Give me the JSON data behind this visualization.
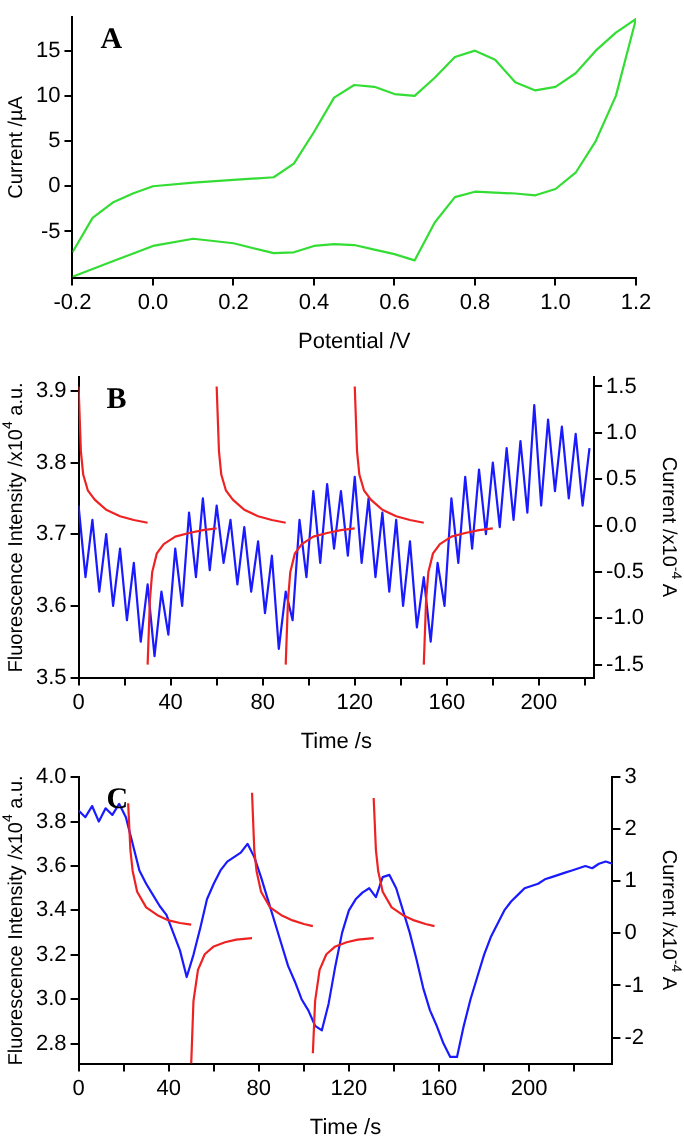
{
  "chart_data": [
    {
      "type": "line",
      "xlabel": "Potential /V",
      "ylabel": "Current /µA",
      "annotations": [
        "A"
      ],
      "marker": "none",
      "xlim": [
        -0.2,
        1.2
      ],
      "ylim": [
        -10.1,
        18.7
      ],
      "xticks": [
        {
          "value": -0.2,
          "label": "-0.2"
        },
        {
          "value": 0,
          "label": "0.0"
        },
        0.2,
        0.4,
        0.6,
        0.8,
        {
          "value": 1,
          "label": "1.0"
        },
        1.2
      ],
      "yticks": [
        -5,
        0,
        5,
        10,
        15
      ],
      "series": [
        {
          "color": "#33dd33",
          "x": [
            -0.2,
            -0.15,
            -0.1,
            -0.05,
            0,
            0.1,
            0.2,
            0.3,
            0.35,
            0.4,
            0.45,
            0.5,
            0.55,
            0.6,
            0.65,
            0.7,
            0.75,
            0.8,
            0.85,
            0.9,
            0.95,
            1.0,
            1.05,
            1.1,
            1.15,
            1.2,
            1.15,
            1.1,
            1.05,
            1.0,
            0.95,
            0.9,
            0.8,
            0.75,
            0.7,
            0.65,
            0.6,
            0.55,
            0.5,
            0.45,
            0.4,
            0.35,
            0.3,
            0.2,
            0.1,
            0,
            -0.1,
            -0.2
          ],
          "values": [
            -7.3,
            -3.5,
            -1.8,
            -0.8,
            0,
            0.4,
            0.7,
            1.0,
            2.5,
            6,
            9.8,
            11.2,
            11,
            10.2,
            10,
            12,
            14.3,
            15,
            14,
            11.5,
            10.6,
            11,
            12.5,
            15,
            17,
            18.5,
            10,
            5,
            1.5,
            -0.3,
            -1,
            -0.8,
            -0.6,
            -1.2,
            -4,
            -8.2,
            -7.5,
            -7,
            -6.5,
            -6.4,
            -6.6,
            -7.3,
            -7.4,
            -6.3,
            -5.8,
            -6.6,
            -8.3,
            -10
          ]
        }
      ]
    },
    {
      "type": "line",
      "xlabel": "Time /s",
      "ylabel": "Fluorescence Intensity /x10$^{4}$ a.u.",
      "y2label": "Current /x10$^{-4}$ A",
      "annotations": [
        "B"
      ],
      "marker": "none",
      "xlim": [
        0,
        224
      ],
      "ylim": [
        3.5,
        3.919
      ],
      "y2lim": [
        -1.64,
        1.6
      ],
      "xticks": [
        0,
        {
          "value": 20,
          "label": null
        },
        40,
        {
          "value": 60,
          "label": null
        },
        80,
        {
          "value": 100,
          "label": null
        },
        120,
        {
          "value": 140,
          "label": null
        },
        160,
        {
          "value": 180,
          "label": null
        },
        200,
        {
          "value": 220,
          "label": null
        }
      ],
      "yticks": [
        3.5,
        3.6,
        3.7,
        3.8,
        3.9
      ],
      "y2ticks": [
        -1.5,
        {
          "value": -1,
          "label": "-1.0"
        },
        -0.5,
        {
          "value": 0,
          "label": "0.0"
        },
        0.5,
        {
          "value": 1,
          "label": "1.0"
        },
        1.5
      ],
      "series": [
        {
          "color": "#1a1aff",
          "x": [
            0,
            3,
            6,
            9,
            12,
            15,
            18,
            21,
            24,
            27,
            30,
            33,
            36,
            39,
            42,
            45,
            48,
            51,
            54,
            57,
            60,
            63,
            66,
            69,
            72,
            75,
            78,
            81,
            84,
            87,
            90,
            93,
            96,
            99,
            102,
            105,
            108,
            111,
            114,
            117,
            120,
            123,
            126,
            129,
            132,
            135,
            138,
            141,
            144,
            147,
            150,
            153,
            156,
            159,
            162,
            165,
            168,
            171,
            174,
            177,
            180,
            183,
            186,
            189,
            192,
            195,
            198,
            201,
            204,
            207,
            210,
            213,
            216,
            219,
            222
          ],
          "values": [
            3.74,
            3.64,
            3.72,
            3.62,
            3.7,
            3.6,
            3.68,
            3.58,
            3.66,
            3.55,
            3.63,
            3.53,
            3.62,
            3.56,
            3.68,
            3.6,
            3.73,
            3.64,
            3.75,
            3.65,
            3.74,
            3.66,
            3.72,
            3.63,
            3.71,
            3.62,
            3.69,
            3.59,
            3.67,
            3.54,
            3.62,
            3.58,
            3.72,
            3.64,
            3.76,
            3.66,
            3.77,
            3.68,
            3.76,
            3.67,
            3.78,
            3.66,
            3.75,
            3.64,
            3.73,
            3.62,
            3.72,
            3.6,
            3.69,
            3.57,
            3.64,
            3.55,
            3.66,
            3.6,
            3.75,
            3.66,
            3.78,
            3.68,
            3.79,
            3.7,
            3.8,
            3.71,
            3.82,
            3.72,
            3.83,
            3.73,
            3.88,
            3.74,
            3.86,
            3.76,
            3.85,
            3.75,
            3.84,
            3.74,
            3.82
          ]
        },
        {
          "color": "#ee2222",
          "axis": "y2",
          "x": [
            0,
            1,
            2,
            4,
            7,
            12,
            18,
            24,
            30
          ],
          "values": [
            1.5,
            0.8,
            0.55,
            0.38,
            0.28,
            0.17,
            0.1,
            0.06,
            0.03
          ]
        },
        {
          "color": "#ee2222",
          "axis": "y2",
          "x": [
            30,
            31,
            32,
            34,
            37,
            42,
            48,
            54,
            60
          ],
          "values": [
            -1.5,
            -0.8,
            -0.5,
            -0.3,
            -0.2,
            -0.12,
            -0.08,
            -0.05,
            -0.03
          ]
        },
        {
          "color": "#ee2222",
          "axis": "y2",
          "x": [
            60,
            61,
            62,
            64,
            67,
            72,
            78,
            84,
            90
          ],
          "values": [
            1.5,
            0.8,
            0.55,
            0.38,
            0.28,
            0.17,
            0.1,
            0.06,
            0.03
          ]
        },
        {
          "color": "#ee2222",
          "axis": "y2",
          "x": [
            90,
            91,
            92,
            94,
            97,
            102,
            108,
            114,
            120
          ],
          "values": [
            -1.5,
            -0.8,
            -0.5,
            -0.3,
            -0.2,
            -0.12,
            -0.08,
            -0.05,
            -0.03
          ]
        },
        {
          "color": "#ee2222",
          "axis": "y2",
          "x": [
            120,
            121,
            122,
            124,
            127,
            132,
            138,
            144,
            150
          ],
          "values": [
            1.5,
            0.8,
            0.55,
            0.38,
            0.28,
            0.17,
            0.1,
            0.06,
            0.03
          ]
        },
        {
          "color": "#ee2222",
          "axis": "y2",
          "x": [
            150,
            151,
            152,
            154,
            157,
            162,
            168,
            174,
            180
          ],
          "values": [
            -1.5,
            -0.8,
            -0.5,
            -0.3,
            -0.2,
            -0.12,
            -0.08,
            -0.05,
            -0.03
          ]
        }
      ]
    },
    {
      "type": "line",
      "xlabel": "Time /s",
      "ylabel": "Fluorescence Intensity /x10$^{4}$ a.u.",
      "y2label": "Current /x10$^{-4}$ A",
      "annotations": [
        "C"
      ],
      "marker": "none",
      "xlim": [
        0,
        237
      ],
      "ylim": [
        2.71,
        4.0
      ],
      "y2lim": [
        -2.5,
        3
      ],
      "xticks": [
        0,
        {
          "value": 20,
          "label": null
        },
        40,
        {
          "value": 60,
          "label": null
        },
        80,
        {
          "value": 100,
          "label": null
        },
        120,
        {
          "value": 140,
          "label": null
        },
        160,
        {
          "value": 180,
          "label": null
        },
        200,
        {
          "value": 220,
          "label": null
        }
      ],
      "yticks": [
        2.8,
        {
          "value": 3,
          "label": "3.0"
        },
        3.2,
        3.4,
        3.6,
        3.8,
        {
          "value": 4,
          "label": "4.0"
        }
      ],
      "y2ticks": [
        -2,
        -1,
        0,
        1,
        2,
        3
      ],
      "series": [
        {
          "color": "#1a1aff",
          "x": [
            0,
            3,
            6,
            9,
            12,
            15,
            18,
            21,
            24,
            27,
            30,
            33,
            36,
            39,
            42,
            45,
            48,
            51,
            54,
            57,
            60,
            63,
            66,
            69,
            72,
            75,
            78,
            81,
            84,
            87,
            90,
            93,
            96,
            99,
            102,
            105,
            108,
            111,
            114,
            117,
            120,
            123,
            126,
            129,
            132,
            135,
            138,
            141,
            144,
            147,
            150,
            153,
            156,
            159,
            162,
            165,
            168,
            171,
            174,
            177,
            180,
            183,
            186,
            189,
            192,
            195,
            198,
            201,
            204,
            207,
            210,
            213,
            216,
            219,
            222,
            225,
            228,
            231,
            234,
            237
          ],
          "values": [
            3.85,
            3.82,
            3.87,
            3.8,
            3.86,
            3.83,
            3.88,
            3.82,
            3.7,
            3.58,
            3.52,
            3.47,
            3.42,
            3.38,
            3.3,
            3.22,
            3.1,
            3.2,
            3.32,
            3.45,
            3.52,
            3.58,
            3.62,
            3.64,
            3.66,
            3.7,
            3.64,
            3.55,
            3.45,
            3.35,
            3.25,
            3.15,
            3.08,
            3.0,
            2.95,
            2.88,
            2.86,
            2.98,
            3.15,
            3.3,
            3.4,
            3.45,
            3.48,
            3.5,
            3.46,
            3.55,
            3.56,
            3.5,
            3.4,
            3.3,
            3.18,
            3.05,
            2.95,
            2.88,
            2.8,
            2.74,
            2.74,
            2.88,
            3.0,
            3.1,
            3.2,
            3.28,
            3.34,
            3.4,
            3.44,
            3.47,
            3.5,
            3.51,
            3.52,
            3.54,
            3.55,
            3.56,
            3.57,
            3.58,
            3.59,
            3.6,
            3.59,
            3.61,
            3.62,
            3.61
          ]
        },
        {
          "color": "#ee2222",
          "axis": "y2",
          "x": [
            22,
            23,
            24,
            26,
            30,
            35,
            40,
            45,
            50
          ],
          "values": [
            2.5,
            1.6,
            1.2,
            0.8,
            0.5,
            0.35,
            0.25,
            0.2,
            0.17
          ]
        },
        {
          "color": "#ee2222",
          "axis": "y2",
          "x": [
            50,
            51,
            53,
            56,
            60,
            65,
            70,
            77
          ],
          "values": [
            -2.5,
            -1.3,
            -0.7,
            -0.4,
            -0.25,
            -0.17,
            -0.12,
            -0.09
          ]
        },
        {
          "color": "#ee2222",
          "axis": "y2",
          "x": [
            77,
            78,
            79,
            81,
            85,
            90,
            95,
            100,
            104
          ],
          "values": [
            2.7,
            1.6,
            1.2,
            0.8,
            0.5,
            0.35,
            0.25,
            0.18,
            0.14
          ]
        },
        {
          "color": "#ee2222",
          "axis": "y2",
          "x": [
            104,
            105,
            107,
            110,
            114,
            119,
            124,
            131
          ],
          "values": [
            -2.3,
            -1.3,
            -0.7,
            -0.4,
            -0.25,
            -0.17,
            -0.12,
            -0.09
          ]
        },
        {
          "color": "#ee2222",
          "axis": "y2",
          "x": [
            131,
            132,
            133,
            135,
            139,
            144,
            149,
            154,
            158
          ],
          "values": [
            2.6,
            1.6,
            1.2,
            0.8,
            0.5,
            0.35,
            0.25,
            0.18,
            0.14
          ]
        }
      ]
    }
  ]
}
